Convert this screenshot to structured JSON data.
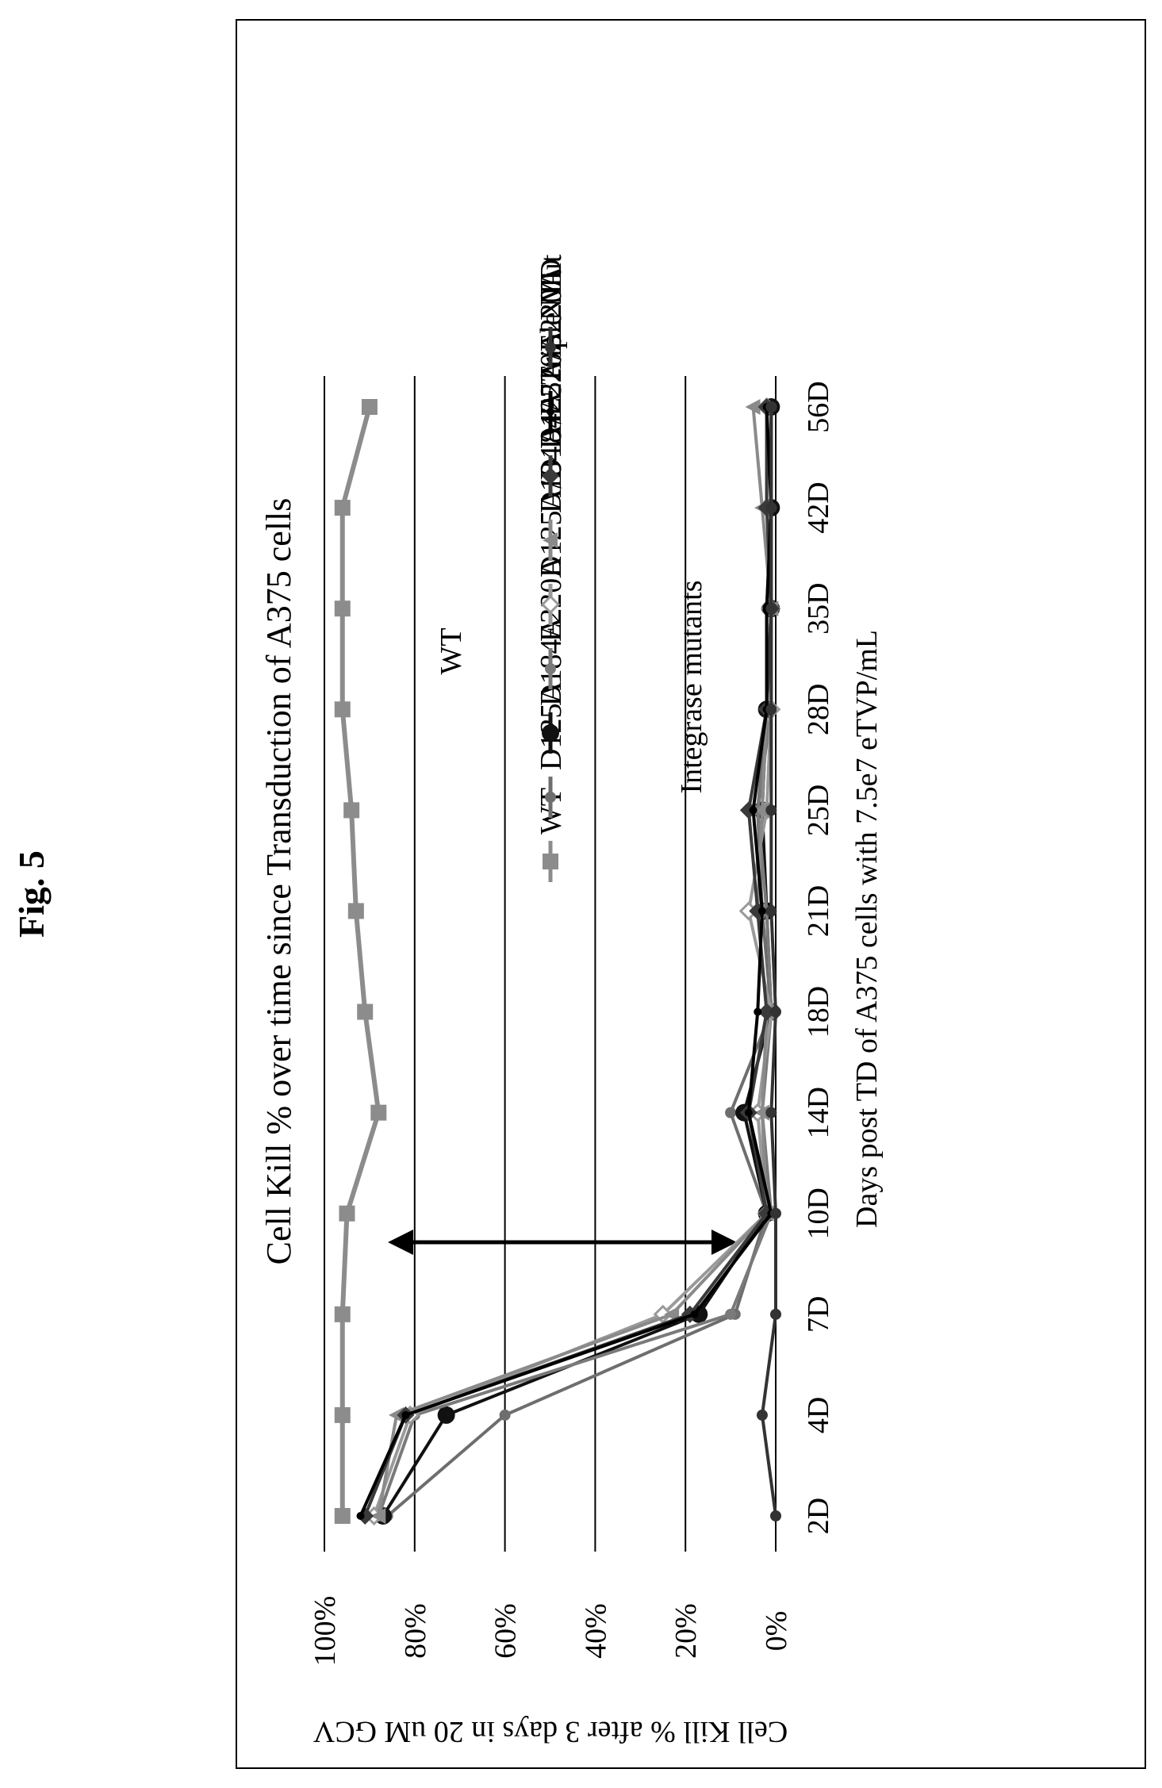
{
  "figure_label": "Fig. 5",
  "chart_data": {
    "type": "line",
    "title": "Cell Kill % over time since Transduction of A375 cells",
    "xlabel": "Days post TD of A375 cells with 7.5e7 eTVP/mL",
    "ylabel": "Cell Kill % after 3 days in 20 uM GCV",
    "categories": [
      "2D",
      "4D",
      "7D",
      "10D",
      "14D",
      "18D",
      "21D",
      "25D",
      "28D",
      "35D",
      "42D",
      "56D"
    ],
    "ylim": [
      0,
      100
    ],
    "yticks": [
      "0%",
      "20%",
      "40%",
      "60%",
      "80%",
      "100%"
    ],
    "grid": true,
    "legend_position": "right",
    "annotations": [
      "WT",
      "Integrase mutants"
    ],
    "series": [
      {
        "name": "WT",
        "marker": "square",
        "color": "#8c8c8c",
        "values": [
          96,
          96,
          96,
          95,
          88,
          91,
          93,
          94,
          96,
          96,
          96,
          90
        ]
      },
      {
        "name": "D125A",
        "marker": "circle",
        "color": "#6e6e6e",
        "values": [
          86,
          60,
          9,
          2,
          10,
          1,
          3,
          4,
          2,
          2,
          1,
          1
        ]
      },
      {
        "name": "D184A",
        "marker": "circle-large",
        "color": "#111111",
        "values": [
          87,
          73,
          17,
          2,
          7,
          1,
          2,
          3,
          2,
          1,
          1,
          1
        ]
      },
      {
        "name": "E220A",
        "marker": "circle",
        "color": "#7a7a7a",
        "values": [
          88,
          80,
          10,
          1,
          3,
          1,
          2,
          4,
          1,
          1,
          1,
          1
        ]
      },
      {
        "name": "D125A/D184A",
        "marker": "diamond-open",
        "color": "#9a9a9a",
        "values": [
          89,
          81,
          25,
          2,
          4,
          1,
          6,
          2,
          1,
          1,
          2,
          2
        ]
      },
      {
        "name": "D184A/E220A",
        "marker": "triangle",
        "color": "#8a8a8a",
        "values": [
          88,
          84,
          23,
          2,
          3,
          2,
          4,
          3,
          2,
          1,
          3,
          5
        ]
      },
      {
        "name": "D125A/E220A",
        "marker": "diamond",
        "color": "#3a3a3a",
        "values": [
          91,
          82,
          19,
          2,
          6,
          2,
          4,
          6,
          2,
          1,
          2,
          2
        ]
      },
      {
        "name": "Triple Mut",
        "marker": "circle-small",
        "color": "#000000",
        "values": [
          92,
          82,
          18,
          1,
          6,
          4,
          3,
          5,
          2,
          2,
          1,
          2
        ]
      },
      {
        "name": "NTD",
        "marker": "circle",
        "color": "#333333",
        "values": [
          0,
          3,
          0,
          0,
          1,
          0,
          1,
          1,
          1,
          1,
          1,
          1
        ]
      }
    ]
  }
}
